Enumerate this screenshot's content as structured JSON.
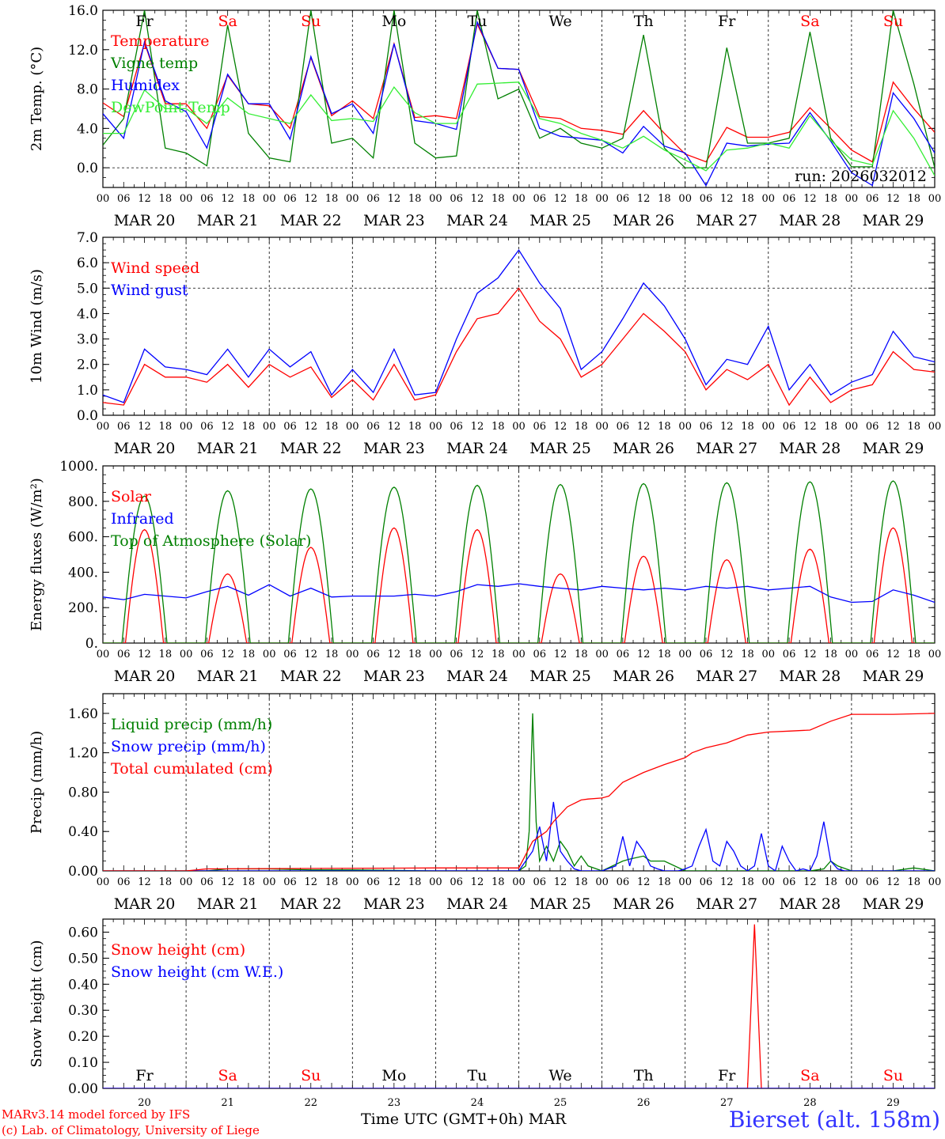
{
  "footer": {
    "model": "MARv3.14 model forced by IFS",
    "credit": "(c) Lab. of Climatology, University of Liege",
    "axis_title": "Time UTC (GMT+0h)",
    "month": "MAR",
    "station": "Bierset (alt. 158m)"
  },
  "time_axis": {
    "hour_labels": [
      "00",
      "06",
      "12",
      "18"
    ],
    "end_label": "00",
    "date_labels": [
      "MAR 20",
      "MAR 21",
      "MAR 22",
      "MAR 23",
      "MAR 24",
      "MAR 25",
      "MAR 26",
      "MAR 27",
      "MAR 28",
      "MAR 29"
    ],
    "weekdays": [
      "Fr",
      "Sa",
      "Su",
      "Mo",
      "Tu",
      "We",
      "Th",
      "Fr",
      "Sa",
      "Su"
    ],
    "weekend_color": "#ff0000",
    "weekday_color": "#000000",
    "day_numbers": [
      "20",
      "21",
      "22",
      "23",
      "24",
      "25",
      "26",
      "27",
      "28",
      "29"
    ],
    "days": 10
  },
  "chart_data": [
    {
      "id": "temp",
      "type": "line",
      "ylabel": "2m Temp. (°C)",
      "ylim": [
        -2,
        16
      ],
      "yticks": [
        0,
        4,
        8,
        12,
        16
      ],
      "ytick_labels": [
        "0.0",
        "4.0",
        "8.0",
        "12.0",
        "16.0"
      ],
      "hline": 0,
      "annotation": "run: 2026032012",
      "legend": "top-left",
      "x_hours": [
        0,
        6,
        12,
        18,
        24,
        30,
        36,
        42,
        48,
        54,
        60,
        66,
        72,
        78,
        84,
        90,
        96,
        102,
        108,
        114,
        120,
        126,
        132,
        138,
        144,
        150,
        156,
        162,
        168,
        174,
        180,
        186,
        192,
        198,
        204,
        210,
        216,
        222,
        228,
        234,
        240
      ],
      "series": [
        {
          "name": "Temperature",
          "color": "#ff0000",
          "values": [
            6.6,
            5.2,
            12.7,
            6.5,
            6.5,
            4.0,
            9.4,
            6.5,
            6.3,
            4.0,
            11.2,
            5.3,
            6.8,
            5.0,
            12.6,
            5.1,
            5.3,
            5.0,
            14.6,
            10.1,
            10.0,
            5.2,
            5.0,
            4.0,
            3.8,
            3.4,
            5.8,
            3.5,
            1.4,
            0.6,
            4.1,
            3.1,
            3.1,
            3.6,
            6.1,
            4.0,
            1.8,
            0.6,
            8.7,
            6.0,
            3.6
          ]
        },
        {
          "name": "Vigne temp",
          "color": "#008000",
          "values": [
            2.3,
            5.0,
            16.0,
            2.0,
            1.5,
            0.2,
            14.5,
            3.5,
            1.0,
            0.6,
            16.0,
            2.5,
            3.0,
            1.0,
            16.0,
            2.5,
            1.0,
            1.2,
            16.0,
            7.0,
            8.0,
            3.0,
            4.0,
            2.5,
            2.0,
            3.0,
            13.5,
            2.0,
            0.0,
            0.0,
            12.2,
            2.5,
            2.5,
            3.0,
            13.8,
            3.0,
            0.1,
            0.1,
            16.0,
            8.5,
            0.0
          ]
        },
        {
          "name": "Humidex",
          "color": "#0000ff",
          "values": [
            5.5,
            3.0,
            12.8,
            6.8,
            5.7,
            2.0,
            9.5,
            6.5,
            6.5,
            2.9,
            11.3,
            5.5,
            6.5,
            3.5,
            12.6,
            4.8,
            4.5,
            3.9,
            14.8,
            10.1,
            10.0,
            4.0,
            3.2,
            3.0,
            2.8,
            1.5,
            4.2,
            2.2,
            1.5,
            -1.8,
            2.5,
            2.2,
            2.4,
            2.5,
            5.6,
            2.7,
            -0.5,
            -1.8,
            7.6,
            5.0,
            1.5
          ]
        },
        {
          "name": "DewPoint Temp",
          "color": "#33ee33",
          "values": [
            3.5,
            3.5,
            7.9,
            6.0,
            6.0,
            4.5,
            7.1,
            5.5,
            5.0,
            4.5,
            7.4,
            4.8,
            5.0,
            4.7,
            8.2,
            5.6,
            4.5,
            4.5,
            8.5,
            8.6,
            8.7,
            5.0,
            4.5,
            3.5,
            2.8,
            2.0,
            3.2,
            1.8,
            0.8,
            -0.3,
            1.8,
            2.0,
            2.5,
            2.0,
            5.3,
            2.8,
            0.8,
            0.3,
            5.8,
            3.0,
            -0.8
          ]
        }
      ]
    },
    {
      "id": "wind",
      "type": "line",
      "ylabel": "10m Wind (m/s)",
      "ylim": [
        0,
        7
      ],
      "yticks": [
        0,
        1,
        2,
        3,
        4,
        5,
        6,
        7
      ],
      "ytick_labels": [
        "0.0",
        "1.0",
        "2.0",
        "3.0",
        "4.0",
        "5.0",
        "6.0",
        "7.0"
      ],
      "hline": 5,
      "legend": "top-left",
      "x_hours": [
        0,
        6,
        12,
        18,
        24,
        30,
        36,
        42,
        48,
        54,
        60,
        66,
        72,
        78,
        84,
        90,
        96,
        102,
        108,
        114,
        120,
        126,
        132,
        138,
        144,
        150,
        156,
        162,
        168,
        174,
        180,
        186,
        192,
        198,
        204,
        210,
        216,
        222,
        228,
        234,
        240
      ],
      "series": [
        {
          "name": "Wind speed",
          "color": "#ff0000",
          "values": [
            0.5,
            0.4,
            2.0,
            1.5,
            1.5,
            1.3,
            2.0,
            1.1,
            2.0,
            1.5,
            1.9,
            0.7,
            1.4,
            0.6,
            2.0,
            0.6,
            0.8,
            2.5,
            3.8,
            4.0,
            5.0,
            3.7,
            3.0,
            1.5,
            2.0,
            3.0,
            4.0,
            3.3,
            2.5,
            1.0,
            1.8,
            1.4,
            2.0,
            0.4,
            1.5,
            0.5,
            1.0,
            1.2,
            2.5,
            1.8,
            1.7
          ]
        },
        {
          "name": "Wind gust",
          "color": "#0000ff",
          "values": [
            0.8,
            0.5,
            2.6,
            1.9,
            1.8,
            1.6,
            2.6,
            1.5,
            2.6,
            1.9,
            2.5,
            0.8,
            1.8,
            0.9,
            2.6,
            0.8,
            0.9,
            3.0,
            4.8,
            5.4,
            6.5,
            5.2,
            4.2,
            1.8,
            2.5,
            3.8,
            5.2,
            4.3,
            3.0,
            1.2,
            2.2,
            2.0,
            3.5,
            1.0,
            2.0,
            0.8,
            1.3,
            1.6,
            3.3,
            2.3,
            2.1
          ]
        }
      ]
    },
    {
      "id": "energy",
      "type": "line",
      "ylabel": "Energy fluxes (W/m²)",
      "ylim": [
        0,
        1000
      ],
      "yticks": [
        0,
        200,
        400,
        600,
        800,
        1000
      ],
      "ytick_labels": [
        "0.",
        "200.",
        "400.",
        "600.",
        "800.",
        "1000."
      ],
      "legend": "top-left",
      "series": [
        {
          "name": "Solar",
          "color": "#ff0000",
          "daily_peak": [
            640,
            390,
            540,
            650,
            640,
            390,
            490,
            470,
            530,
            650
          ]
        },
        {
          "name": "Infrared",
          "color": "#0000ff",
          "x_hours": [
            0,
            6,
            12,
            18,
            24,
            30,
            36,
            42,
            48,
            54,
            60,
            66,
            72,
            78,
            84,
            90,
            96,
            102,
            108,
            114,
            120,
            126,
            132,
            138,
            144,
            150,
            156,
            162,
            168,
            174,
            180,
            186,
            192,
            198,
            204,
            210,
            216,
            222,
            228,
            234,
            240
          ],
          "values": [
            260,
            245,
            275,
            265,
            255,
            290,
            320,
            270,
            330,
            265,
            310,
            260,
            265,
            265,
            265,
            275,
            265,
            290,
            330,
            320,
            335,
            320,
            310,
            300,
            320,
            310,
            300,
            310,
            300,
            320,
            310,
            320,
            300,
            310,
            320,
            260,
            230,
            235,
            300,
            270,
            230
          ]
        },
        {
          "name": "Top of Atmosphere (Solar)",
          "color": "#008000",
          "daily_peak": [
            830,
            860,
            870,
            880,
            890,
            895,
            900,
            905,
            910,
            915
          ]
        }
      ]
    },
    {
      "id": "precip",
      "type": "line",
      "ylabel": "Precip (mm/h)",
      "ylim": [
        0,
        1.8
      ],
      "yticks": [
        0,
        0.4,
        0.8,
        1.2,
        1.6
      ],
      "ytick_labels": [
        "0.00",
        "0.40",
        "0.80",
        "1.20",
        "1.60"
      ],
      "legend": "top-left",
      "series": [
        {
          "name": "Liquid precip (mm/h)",
          "color": "#008000",
          "x_hours": [
            0,
            24,
            30,
            36,
            48,
            60,
            72,
            96,
            120,
            122,
            123,
            124,
            125,
            126,
            128,
            130,
            132,
            134,
            136,
            138,
            140,
            144,
            150,
            152,
            156,
            158,
            162,
            168,
            174,
            180,
            186,
            192,
            198,
            204,
            208,
            210,
            212,
            216,
            228,
            234,
            240
          ],
          "values": [
            0,
            0,
            0,
            0.02,
            0.02,
            0.01,
            0.01,
            0,
            0,
            0.05,
            0.4,
            1.6,
            0.5,
            0.1,
            0.25,
            0.1,
            0.3,
            0.2,
            0.05,
            0.15,
            0.05,
            0,
            0.1,
            0.12,
            0.15,
            0.1,
            0.1,
            0,
            0,
            0,
            0,
            0,
            0,
            0,
            0.02,
            0.1,
            0.05,
            0,
            0,
            0.03,
            0
          ]
        },
        {
          "name": "Snow precip (mm/h)",
          "color": "#0000ff",
          "x_hours": [
            0,
            120,
            124,
            126,
            128,
            130,
            132,
            134,
            136,
            138,
            140,
            144,
            148,
            150,
            152,
            154,
            156,
            158,
            160,
            162,
            164,
            166,
            168,
            170,
            172,
            174,
            176,
            178,
            180,
            182,
            184,
            186,
            188,
            190,
            192,
            194,
            196,
            198,
            200,
            202,
            204,
            206,
            208,
            210,
            212,
            214,
            216,
            240
          ],
          "values": [
            0,
            0,
            0.2,
            0.45,
            0.1,
            0.7,
            0.2,
            0.1,
            0.02,
            0,
            0,
            0,
            0.05,
            0.35,
            0.05,
            0.3,
            0.2,
            0.05,
            0.02,
            0,
            0,
            0,
            0.02,
            0.05,
            0.25,
            0.42,
            0.1,
            0.05,
            0.3,
            0.2,
            0.05,
            0,
            0.05,
            0.38,
            0.05,
            0,
            0.25,
            0.1,
            0,
            0.02,
            0,
            0.15,
            0.5,
            0.1,
            0.02,
            0,
            0,
            0
          ]
        },
        {
          "name": "Total cumulated (cm)",
          "color": "#ff0000",
          "x_hours": [
            0,
            24,
            30,
            96,
            120,
            124,
            128,
            130,
            134,
            138,
            140,
            144,
            146,
            150,
            156,
            162,
            168,
            170,
            174,
            180,
            186,
            192,
            198,
            204,
            210,
            216,
            228,
            240
          ],
          "values": [
            0,
            0,
            0.02,
            0.03,
            0.03,
            0.3,
            0.4,
            0.5,
            0.65,
            0.72,
            0.73,
            0.74,
            0.76,
            0.9,
            1.0,
            1.08,
            1.15,
            1.2,
            1.25,
            1.3,
            1.38,
            1.41,
            1.42,
            1.43,
            1.52,
            1.59,
            1.59,
            1.6
          ]
        }
      ]
    },
    {
      "id": "snow",
      "type": "line",
      "ylabel": "Snow height (cm)",
      "ylim": [
        0,
        0.65
      ],
      "yticks": [
        0,
        0.1,
        0.2,
        0.3,
        0.4,
        0.5,
        0.6
      ],
      "ytick_labels": [
        "0.00",
        "0.10",
        "0.20",
        "0.30",
        "0.40",
        "0.50",
        "0.60"
      ],
      "legend": "top-left",
      "series": [
        {
          "name": "Snow height (cm)",
          "color": "#ff0000",
          "x_hours": [
            0,
            186,
            188,
            190,
            240
          ],
          "values": [
            0,
            0,
            0.63,
            0,
            0
          ]
        },
        {
          "name": "Snow height (cm W.E.)",
          "color": "#0000ff",
          "x_hours": [
            0,
            240
          ],
          "values": [
            0,
            0
          ]
        }
      ]
    }
  ]
}
